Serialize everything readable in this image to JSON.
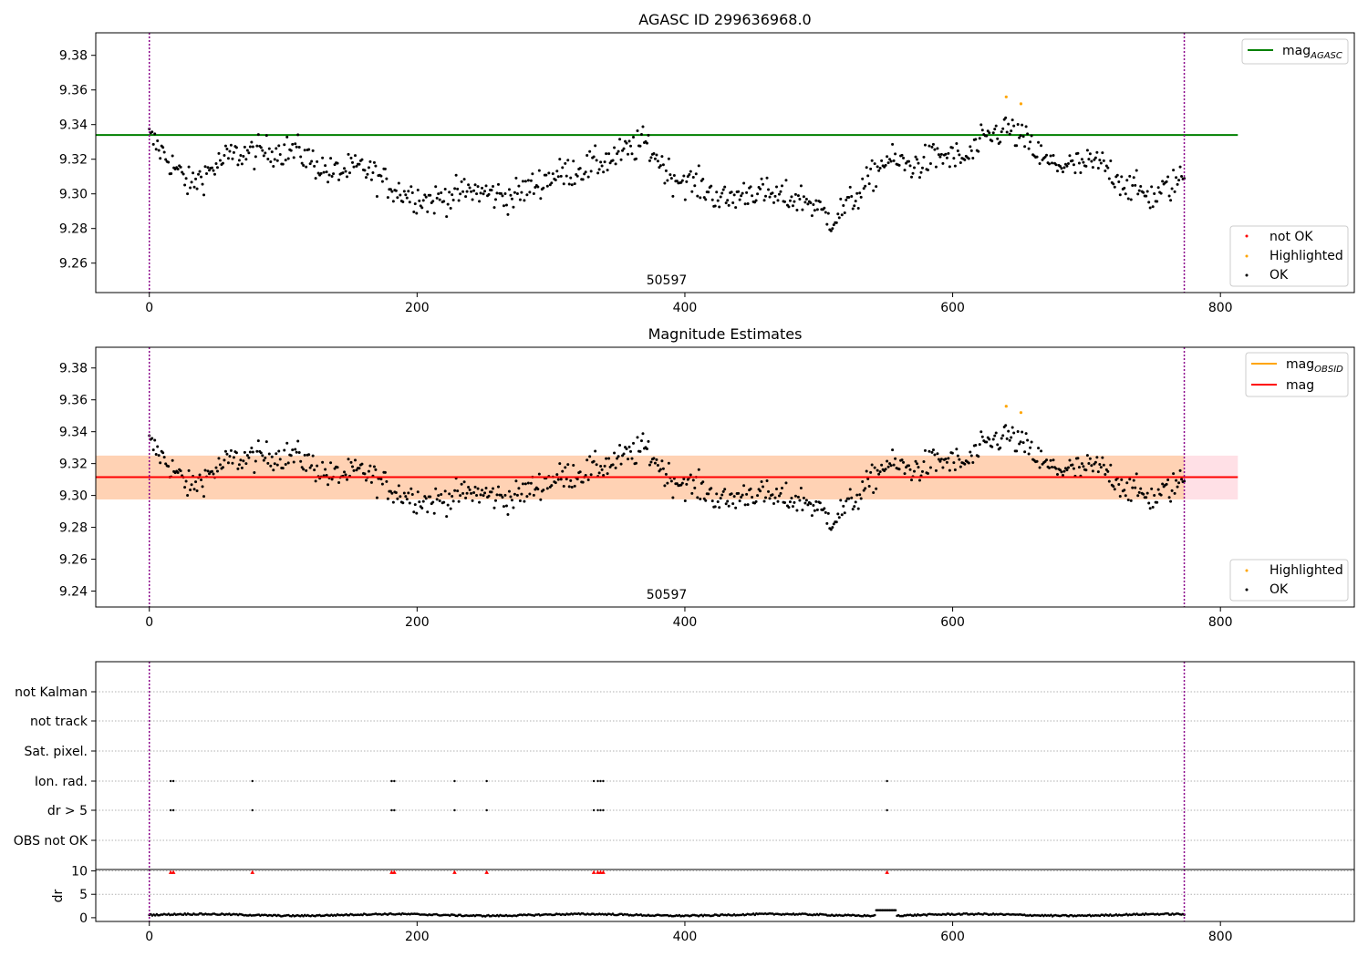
{
  "chart_data": [
    {
      "id": "panel1",
      "type": "scatter",
      "title": "AGASC ID 299636968.0",
      "xlim": [
        -40,
        900
      ],
      "ylim": [
        9.243,
        9.393
      ],
      "xticks": [
        0,
        200,
        400,
        600,
        800
      ],
      "yticks": [
        9.26,
        9.28,
        9.3,
        9.32,
        9.34,
        9.36,
        9.38
      ],
      "vlines": [
        0,
        773
      ],
      "vline_color": "#8b008b",
      "obsid_label": {
        "text": "50597",
        "x": 386
      },
      "hline": {
        "name": "mag",
        "sub": "AGASC",
        "value": 9.334,
        "x_end": 813,
        "color": "#008000"
      },
      "legend_lines": [
        {
          "name": "mag",
          "sub": "AGASC",
          "color": "#008000"
        }
      ],
      "legend_points": [
        {
          "name": "not OK",
          "color": "#ff0000"
        },
        {
          "name": "Highlighted",
          "color": "#ffa500"
        },
        {
          "name": "OK",
          "color": "#000000"
        }
      ],
      "highlighted": [
        [
          640,
          9.356
        ],
        [
          651,
          9.352
        ]
      ],
      "series_anchors": [
        [
          0,
          9.333
        ],
        [
          30,
          9.305
        ],
        [
          60,
          9.322
        ],
        [
          90,
          9.325
        ],
        [
          110,
          9.325
        ],
        [
          135,
          9.312
        ],
        [
          160,
          9.315
        ],
        [
          185,
          9.302
        ],
        [
          210,
          9.296
        ],
        [
          240,
          9.302
        ],
        [
          270,
          9.298
        ],
        [
          300,
          9.31
        ],
        [
          330,
          9.316
        ],
        [
          350,
          9.322
        ],
        [
          370,
          9.33
        ],
        [
          390,
          9.31
        ],
        [
          410,
          9.305
        ],
        [
          430,
          9.296
        ],
        [
          450,
          9.302
        ],
        [
          470,
          9.298
        ],
        [
          490,
          9.297
        ],
        [
          510,
          9.285
        ],
        [
          530,
          9.3
        ],
        [
          550,
          9.32
        ],
        [
          570,
          9.316
        ],
        [
          590,
          9.322
        ],
        [
          610,
          9.32
        ],
        [
          625,
          9.332
        ],
        [
          640,
          9.338
        ],
        [
          655,
          9.33
        ],
        [
          670,
          9.318
        ],
        [
          690,
          9.316
        ],
        [
          710,
          9.318
        ],
        [
          730,
          9.305
        ],
        [
          750,
          9.298
        ],
        [
          773,
          9.31
        ]
      ],
      "n_points": 760,
      "scatter_amp": 0.009
    },
    {
      "id": "panel2",
      "type": "scatter",
      "title": "Magnitude Estimates",
      "xlim": [
        -40,
        900
      ],
      "ylim": [
        9.23,
        9.393
      ],
      "xticks": [
        0,
        200,
        400,
        600,
        800
      ],
      "yticks": [
        9.24,
        9.26,
        9.28,
        9.3,
        9.32,
        9.34,
        9.36,
        9.38
      ],
      "vlines": [
        0,
        773
      ],
      "vline_color": "#8b008b",
      "obsid_label": {
        "text": "50597",
        "x": 386
      },
      "mean_line": {
        "name": "mag",
        "value": 9.3115,
        "x_end": 813,
        "color": "#ff0000"
      },
      "obsid_band": {
        "low": 9.2975,
        "high": 9.325,
        "x_end": 773,
        "color": "#ffd2b4"
      },
      "agasc_band": {
        "low": 9.2975,
        "high": 9.325,
        "x_end": 813,
        "color": "#ffe0e6"
      },
      "legend_lines": [
        {
          "name": "mag",
          "sub": "OBSID",
          "color": "#ffa500"
        },
        {
          "name": "mag",
          "sub": "",
          "color": "#ff0000"
        }
      ],
      "legend_points": [
        {
          "name": "Highlighted",
          "color": "#ffa500"
        },
        {
          "name": "OK",
          "color": "#000000"
        }
      ],
      "highlighted": [
        [
          640,
          9.356
        ],
        [
          651,
          9.352
        ]
      ]
    },
    {
      "id": "panel3",
      "type": "scatter",
      "xlim": [
        -40,
        900
      ],
      "xticks": [
        0,
        200,
        400,
        600,
        800
      ],
      "vlines": [
        0,
        773
      ],
      "vline_color": "#8b008b",
      "flag_labels": [
        "not Kalman",
        "not track",
        "Sat. pixel.",
        "Ion. rad.",
        "dr > 5",
        "OBS not OK"
      ],
      "flag_events": {
        "Ion. rad.": [
          16,
          18,
          77,
          181,
          183,
          228,
          252,
          332,
          335,
          337,
          339,
          551
        ],
        "dr > 5": [
          16,
          18,
          77,
          181,
          183,
          228,
          252,
          332,
          335,
          337,
          339,
          551
        ]
      },
      "dr_ylabel": "dr",
      "dr_yticks": [
        0,
        5,
        10
      ],
      "dr_ylim": [
        -0.8,
        10.3
      ],
      "dr_flag_value": 9.7,
      "dr_flag_x": [
        16,
        18,
        77,
        181,
        183,
        228,
        252,
        332,
        335,
        337,
        339,
        551
      ],
      "dr_flag_color": "#ff0000",
      "dr_baseline": {
        "mean": 0.6,
        "amp": 0.3,
        "bump": {
          "x": 550,
          "value": 1.6
        }
      }
    }
  ]
}
